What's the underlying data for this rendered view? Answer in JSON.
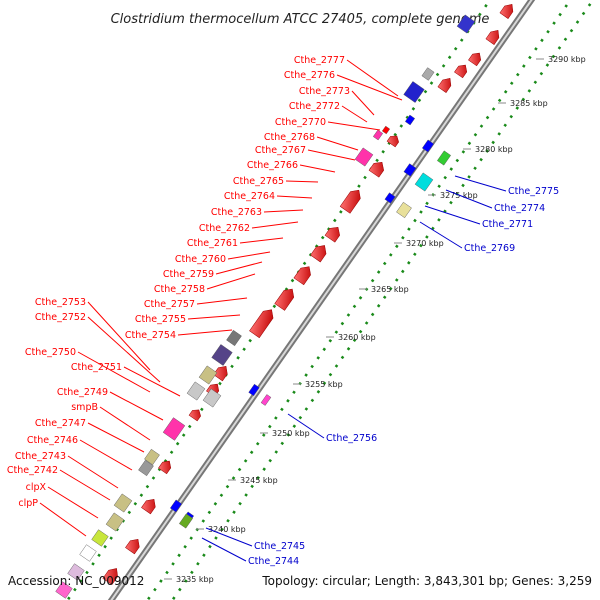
{
  "title": "Clostridium thermocellum ATCC 27405, complete genome",
  "footer": {
    "accession": "Accession: NC_009012",
    "topology": "Topology: circular; Length: 3,843,301 bp; Genes: 3,259"
  },
  "colors": {
    "forward_label": "#ff0000",
    "reverse_label": "#0000cc",
    "backbone": "#888888",
    "tick_dots": "#1a8a1a",
    "forward_gene": "#ff0000",
    "reverse_gene": "#0000ff"
  },
  "kbp_ticks": [
    "3235 kbp",
    "3240 kbp",
    "3245 kbp",
    "3250 kbp",
    "3255 kbp",
    "3260 kbp",
    "3265 kbp",
    "3270 kbp",
    "3275 kbp",
    "3280 kbp",
    "3285 kbp",
    "3290 kbp"
  ],
  "forward_labels": [
    "Cthe_2777",
    "Cthe_2776",
    "Cthe_2773",
    "Cthe_2772",
    "Cthe_2770",
    "Cthe_2768",
    "Cthe_2767",
    "Cthe_2766",
    "Cthe_2765",
    "Cthe_2764",
    "Cthe_2763",
    "Cthe_2762",
    "Cthe_2761",
    "Cthe_2760",
    "Cthe_2759",
    "Cthe_2758",
    "Cthe_2753",
    "Cthe_2757",
    "Cthe_2752",
    "Cthe_2755",
    "Cthe_2754",
    "Cthe_2750",
    "Cthe_2751",
    "Cthe_2749",
    "smpB",
    "Cthe_2747",
    "Cthe_2746",
    "Cthe_2743",
    "Cthe_2742",
    "clpX",
    "clpP"
  ],
  "reverse_labels": [
    "Cthe_2775",
    "Cthe_2774",
    "Cthe_2771",
    "Cthe_2769",
    "Cthe_2756",
    "Cthe_2745",
    "Cthe_2744"
  ]
}
